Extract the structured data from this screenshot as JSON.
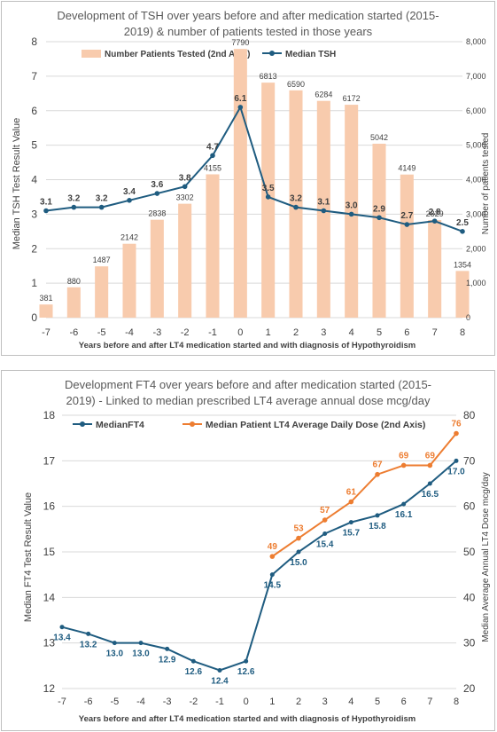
{
  "chart_data": [
    {
      "type": "bar+line",
      "title": "Development of TSH over years before and after medication started (2015-2019) & number of patients tested in those years",
      "title_lines": [
        "Development of TSH over years before and after medication started (2015-",
        "2019) & number of patients tested in those years"
      ],
      "xlabel": "Years before and after LT4 medication started and with diagnosis of Hypothyroidism",
      "ylabel": "Median TSH Test Result Value",
      "y2label": "Number of patients tested",
      "x": [
        -7,
        -6,
        -5,
        -4,
        -3,
        -2,
        -1,
        0,
        1,
        2,
        3,
        4,
        5,
        6,
        7,
        8
      ],
      "ylim": [
        0,
        8
      ],
      "yticks": [
        0,
        1,
        2,
        3,
        4,
        5,
        6,
        7,
        8
      ],
      "y2lim": [
        0,
        8000
      ],
      "y2ticks": [
        "0",
        "1,000",
        "2,000",
        "3,000",
        "4,000",
        "5,000",
        "6,000",
        "7,000",
        "8,000"
      ],
      "legend_position": "top",
      "series": [
        {
          "name": "Number Patients Tested (2nd Axis)",
          "kind": "bar",
          "axis": "secondary",
          "color": "#f8cbad",
          "values": [
            381,
            880,
            1487,
            2142,
            2838,
            3302,
            4155,
            7790,
            6813,
            6590,
            6284,
            6172,
            5042,
            4149,
            2829,
            1354
          ],
          "labels": [
            "381",
            "880",
            "1487",
            "2142",
            "2838",
            "3302",
            "4155",
            "7790",
            "6813",
            "6590",
            "6284",
            "6172",
            "5042",
            "4149",
            "2829",
            "1354"
          ]
        },
        {
          "name": "Median TSH",
          "kind": "line",
          "axis": "primary",
          "color": "#1f5c80",
          "values": [
            3.1,
            3.2,
            3.2,
            3.4,
            3.6,
            3.8,
            4.7,
            6.1,
            3.5,
            3.2,
            3.1,
            3.0,
            2.9,
            2.7,
            2.8,
            2.5
          ],
          "labels": [
            "3.1",
            "3.2",
            "3.2",
            "3.4",
            "3.6",
            "3.8",
            "4.7",
            "6.1",
            "3.5",
            "3.2",
            "3.1",
            "3.0",
            "2.9",
            "2.7",
            "2.8",
            "2.5"
          ]
        }
      ]
    },
    {
      "type": "line",
      "title": "Development FT4 over years before and after medication started (2015-2019) - Linked to median prescribed LT4 average annual dose mcg/day",
      "title_lines": [
        "Development  FT4  over years before and after medication started (2015-",
        "2019) - Linked to median prescribed LT4 average annual dose mcg/day"
      ],
      "xlabel": "Years before and after LT4 medication started and with diagnosis of Hypothyroidism",
      "ylabel": "Median FT4 Test Result Value",
      "y2label": "Median Average Annual LT4 Dose mcg/day",
      "x": [
        -7,
        -6,
        -5,
        -4,
        -3,
        -2,
        -1,
        0,
        1,
        2,
        3,
        4,
        5,
        6,
        7,
        8
      ],
      "ylim": [
        12,
        18
      ],
      "yticks": [
        12,
        13,
        14,
        15,
        16,
        17,
        18
      ],
      "y2lim": [
        20,
        80
      ],
      "y2ticks": [
        20,
        30,
        40,
        50,
        60,
        70,
        80
      ],
      "legend_position": "top",
      "series": [
        {
          "name": "MedianFT4",
          "axis": "primary",
          "color": "#1f5c80",
          "x": [
            -7,
            -6,
            -5,
            -4,
            -3,
            -2,
            -1,
            0,
            1,
            2,
            3,
            4,
            5,
            6,
            7,
            8
          ],
          "values": [
            13.35,
            13.2,
            13.0,
            13.0,
            12.87,
            12.6,
            12.4,
            12.6,
            14.5,
            15.0,
            15.4,
            15.65,
            15.8,
            16.05,
            16.5,
            17.0
          ],
          "labels": [
            "13.4",
            "13.2",
            "13.0",
            "13.0",
            "12.9",
            "12.6",
            "12.4",
            "12.6",
            "14.5",
            "15.0",
            "15.4",
            "15.7",
            "15.8",
            "16.1",
            "16.5",
            "17.0"
          ]
        },
        {
          "name": "Median Patient LT4 Average Daily Dose (2nd Axis)",
          "axis": "secondary",
          "color": "#ed7d31",
          "x": [
            1,
            2,
            3,
            4,
            5,
            6,
            7,
            8
          ],
          "values": [
            49,
            53,
            57,
            61,
            67,
            69,
            69,
            76
          ],
          "labels": [
            "49",
            "53",
            "57",
            "61",
            "67",
            "69",
            "69",
            "76"
          ]
        }
      ]
    }
  ]
}
